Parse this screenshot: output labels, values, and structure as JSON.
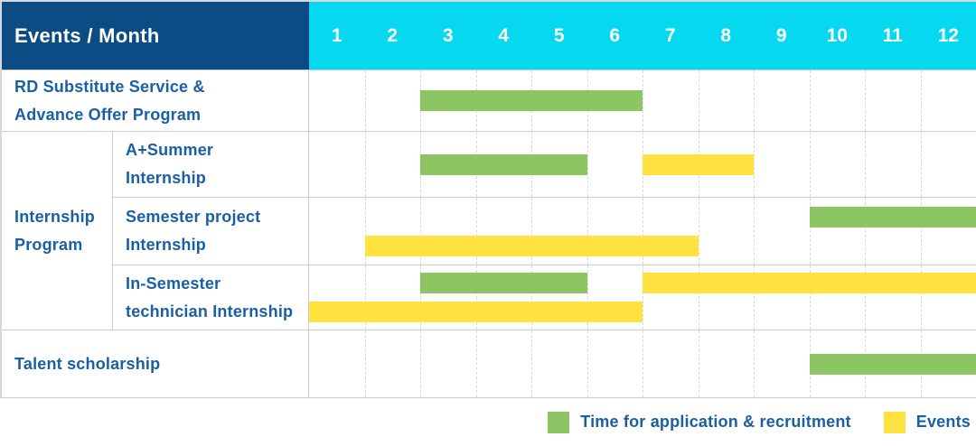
{
  "header": {
    "corner_label": "Events / Month",
    "months": [
      "1",
      "2",
      "3",
      "4",
      "5",
      "6",
      "7",
      "8",
      "9",
      "10",
      "11",
      "12"
    ]
  },
  "group": {
    "name": "Internship Program",
    "label_lines": [
      "Internship",
      "Program"
    ]
  },
  "rows": [
    {
      "name": "RD Substitute Service & Advance Offer Program",
      "label_lines": [
        "RD Substitute Service &",
        "Advance Offer Program"
      ],
      "lines": [
        [
          {
            "type": "application",
            "start": 3,
            "end": 6
          }
        ]
      ]
    },
    {
      "name": "A+Summer Internship",
      "label_lines": [
        "A+Summer",
        "Internship"
      ],
      "lines": [
        [
          {
            "type": "application",
            "start": 3,
            "end": 5
          },
          {
            "type": "event",
            "start": 7,
            "end": 8
          }
        ]
      ]
    },
    {
      "name": "Semester project Internship",
      "label_lines": [
        "Semester project",
        "Internship"
      ],
      "lines": [
        [
          {
            "type": "application",
            "start": 10,
            "end": 12
          }
        ],
        [
          {
            "type": "event",
            "start": 2,
            "end": 7
          }
        ]
      ]
    },
    {
      "name": "In-Semester technician Internship",
      "label_lines": [
        "In-Semester",
        "technician Internship"
      ],
      "lines": [
        [
          {
            "type": "application",
            "start": 3,
            "end": 5
          },
          {
            "type": "event",
            "start": 7,
            "end": 12
          }
        ],
        [
          {
            "type": "event",
            "start": 1,
            "end": 6
          }
        ]
      ]
    },
    {
      "name": "Talent scholarship",
      "label_lines": [
        "Talent scholarship"
      ],
      "lines": [
        [
          {
            "type": "application",
            "start": 10,
            "end": 12
          }
        ]
      ]
    }
  ],
  "legend": {
    "items": [
      {
        "type": "application",
        "label": "Time for application & recruitment"
      },
      {
        "type": "event",
        "label": "Events"
      }
    ]
  },
  "colors": {
    "header_bg": "#0C4C85",
    "months_bg": "#06D9EF",
    "label_text": "#1A5FA5",
    "application_green": "#8CC563",
    "event_yellow": "#FFE23F",
    "row_line": "#cccccc",
    "column_line": "#d9d9d9",
    "outer_border": "#d6dade"
  },
  "chart_data": {
    "type": "gantt",
    "title": "Events / Month",
    "x": {
      "label": "Month",
      "ticks": [
        1,
        2,
        3,
        4,
        5,
        6,
        7,
        8,
        9,
        10,
        11,
        12
      ],
      "range": [
        1,
        12
      ]
    },
    "legend": [
      {
        "name": "Time for application & recruitment",
        "color": "#8CC563"
      },
      {
        "name": "Events",
        "color": "#FFE23F"
      }
    ],
    "legend_position": "bottom-right",
    "grid": true,
    "rows": [
      {
        "event": "RD Substitute Service & Advance Offer Program",
        "group": null,
        "application_recruitment_months": [
          [
            3,
            6
          ]
        ],
        "events_months": []
      },
      {
        "event": "A+Summer Internship",
        "group": "Internship Program",
        "application_recruitment_months": [
          [
            3,
            5
          ]
        ],
        "events_months": [
          [
            7,
            8
          ]
        ]
      },
      {
        "event": "Semester project Internship",
        "group": "Internship Program",
        "application_recruitment_months": [
          [
            10,
            12
          ]
        ],
        "events_months": [
          [
            2,
            7
          ]
        ]
      },
      {
        "event": "In-Semester technician Internship",
        "group": "Internship Program",
        "application_recruitment_months": [
          [
            3,
            5
          ]
        ],
        "events_months": [
          [
            7,
            12
          ],
          [
            1,
            6
          ]
        ]
      },
      {
        "event": "Talent scholarship",
        "group": null,
        "application_recruitment_months": [
          [
            10,
            12
          ]
        ],
        "events_months": []
      }
    ]
  }
}
